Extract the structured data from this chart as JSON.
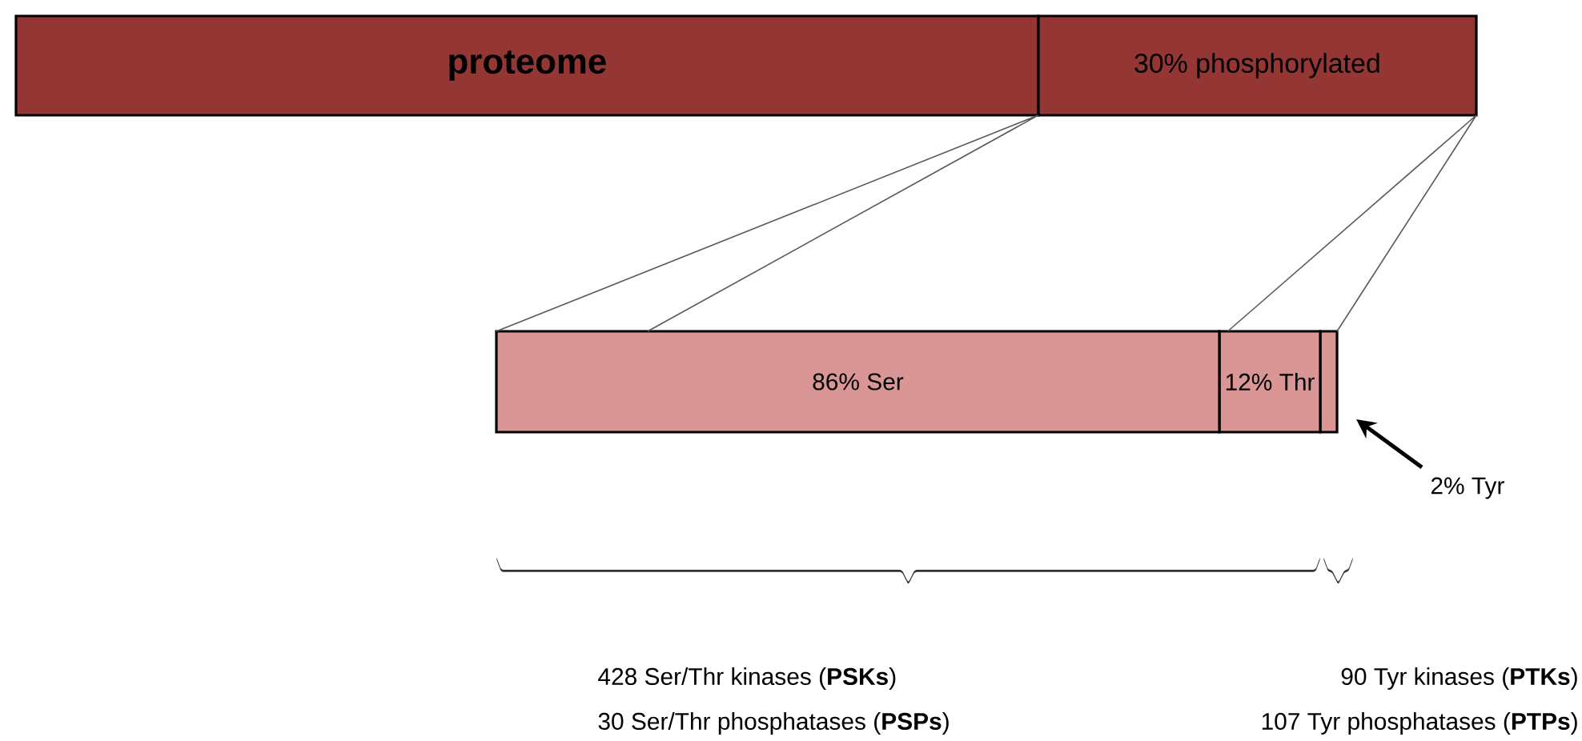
{
  "chart_data": [
    {
      "type": "bar",
      "orientation": "horizontal",
      "stacked": true,
      "categories": [
        null
      ],
      "series": [
        {
          "name": "proteome",
          "color": "#943634",
          "values": [
            70
          ]
        },
        {
          "color": "#943634",
          "values": [
            30
          ],
          "value_labels": [
            "30% phosphorylated"
          ]
        }
      ]
    },
    {
      "type": "bar",
      "orientation": "horizontal",
      "stacked": true,
      "categories": [
        null
      ],
      "series": [
        {
          "color": "#d99694",
          "values": [
            86
          ],
          "value_labels": [
            "86% Ser"
          ]
        },
        {
          "color": "#d99694",
          "values": [
            12
          ],
          "value_labels": [
            "12% Thr"
          ]
        },
        {
          "color": "#d99694",
          "values": [
            2
          ],
          "value_labels": [
            null
          ]
        }
      ],
      "annotations": [
        "2% Tyr",
        "428 Ser/Thr kinases (**PSKs**)",
        "30 Ser/Thr phosphatases (**PSPs**)",
        "90 Tyr kinases (**PTKs**)",
        "107 Tyr phosphatases (**PTPs**)"
      ]
    }
  ]
}
